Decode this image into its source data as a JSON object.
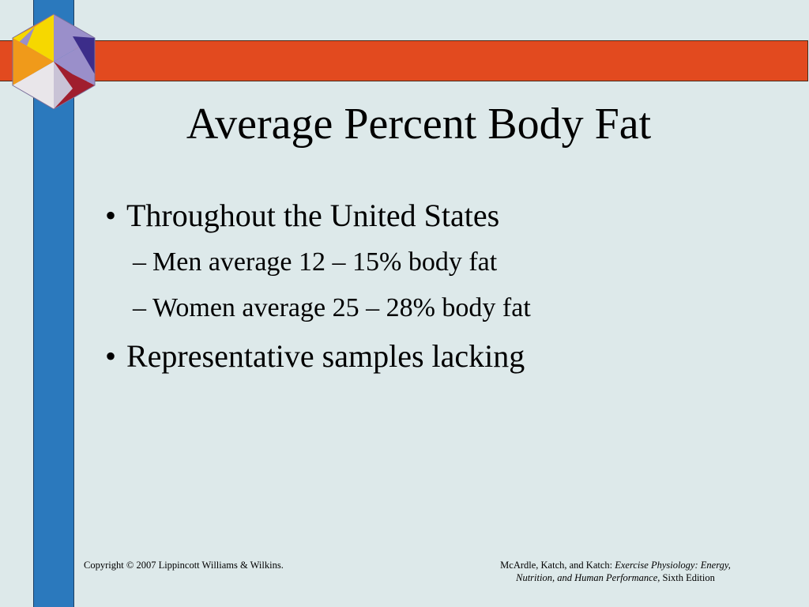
{
  "slide": {
    "title": "Average Percent Body Fat",
    "bullets": [
      {
        "text": "Throughout the United States",
        "subitems": [
          "Men average 12 – 15% body fat",
          "Women average 25 – 28% body fat"
        ]
      },
      {
        "text": "Representative samples lacking",
        "subitems": []
      }
    ],
    "bullet_symbol": "•",
    "sub_symbol": "–"
  },
  "footer": {
    "copyright": "Copyright © 2007 Lippincott Williams & Wilkins.",
    "citation_authors": "McArdle, Katch, and Katch:",
    "citation_title_line1": "Exercise Physiology: Energy,",
    "citation_title_line2": "Nutrition, and Human Performance,",
    "citation_edition": "Sixth Edition"
  },
  "colors": {
    "background": "#dde9ea",
    "red_bar": "#e24a1f",
    "blue_bar": "#2b79bd",
    "logo_yellow": "#f6d800",
    "logo_orange": "#f09a1a",
    "logo_lavender": "#9a8fca",
    "logo_indigo": "#3c2d8a",
    "logo_crimson": "#a01e2e",
    "logo_white": "#e9e6ea"
  }
}
